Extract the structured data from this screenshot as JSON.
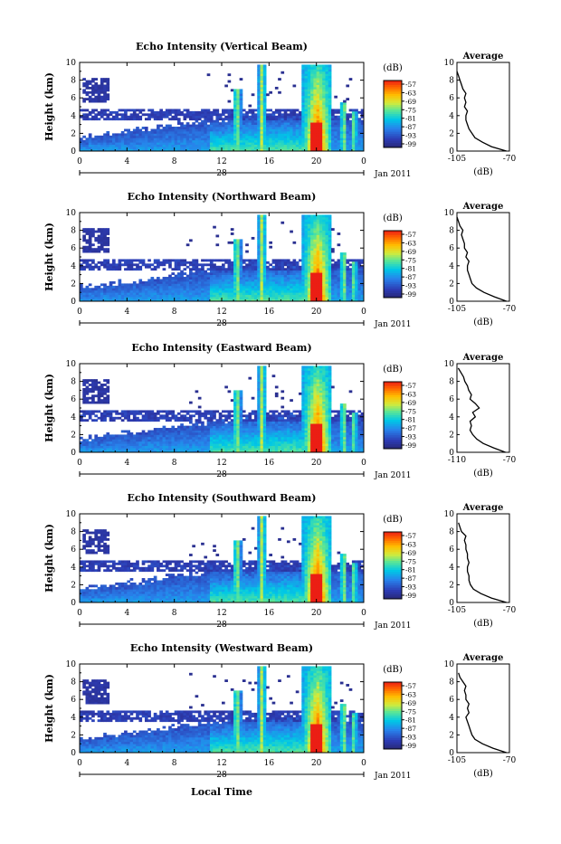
{
  "figure": {
    "x_axis_label": "Local Time",
    "day_label": "28",
    "month_label": "Jan 2011",
    "ylabel": "Height (km)",
    "colorbar_unit": "(dB)",
    "colorbar_ticks": [
      "-57",
      "-63",
      "-69",
      "-75",
      "-81",
      "-87",
      "-93",
      "-99"
    ],
    "time_ticks": [
      "0",
      "4",
      "8",
      "12",
      "16",
      "20",
      "0"
    ],
    "height_ticks": [
      "0",
      "2",
      "4",
      "6",
      "8",
      "10"
    ],
    "profile_title": "Average",
    "profile_xlabel": "(dB)"
  },
  "chart_data": [
    {
      "type": "heatmap",
      "title": "Echo Intensity (Vertical Beam)",
      "xlabel": "Local Time",
      "ylabel": "Height (km)",
      "xlim": [
        0,
        24
      ],
      "ylim": [
        0,
        10
      ],
      "colorbar": {
        "label": "(dB)",
        "range": [
          -99,
          -57
        ]
      },
      "profile": {
        "title": "Average",
        "xlabel": "(dB)",
        "xlim": [
          -105,
          -70
        ],
        "xticks": [
          "-105",
          "-70"
        ],
        "heights": [
          0,
          0.5,
          1,
          1.5,
          2,
          2.5,
          3,
          3.5,
          4,
          4.5,
          5,
          5.5,
          6,
          6.5,
          7,
          7.5,
          8,
          8.5,
          9
        ],
        "values": [
          -72,
          -82,
          -88,
          -93,
          -95,
          -97,
          -98,
          -99,
          -99,
          -98,
          -100,
          -99,
          -100,
          -99,
          -101,
          -102,
          -103,
          -104,
          -105
        ]
      }
    },
    {
      "type": "heatmap",
      "title": "Echo Intensity (Northward Beam)",
      "xlabel": "Local Time",
      "ylabel": "Height (km)",
      "xlim": [
        0,
        24
      ],
      "ylim": [
        0,
        10
      ],
      "colorbar": {
        "label": "(dB)",
        "range": [
          -99,
          -57
        ]
      },
      "profile": {
        "title": "Average",
        "xlabel": "(dB)",
        "xlim": [
          -105,
          -70
        ],
        "xticks": [
          "-105",
          "-70"
        ],
        "heights": [
          0,
          0.5,
          1,
          1.5,
          2,
          2.5,
          3,
          3.5,
          4,
          4.5,
          5,
          5.5,
          6,
          6.5,
          7,
          7.5,
          8,
          8.5,
          9,
          9.5
        ],
        "values": [
          -72,
          -80,
          -87,
          -92,
          -95,
          -96,
          -97,
          -98,
          -98,
          -97,
          -99,
          -98,
          -100,
          -100,
          -101,
          -102,
          -101,
          -103,
          -104,
          -105
        ]
      }
    },
    {
      "type": "heatmap",
      "title": "Echo Intensity (Eastward Beam)",
      "xlabel": "Local Time",
      "ylabel": "Height (km)",
      "xlim": [
        0,
        24
      ],
      "ylim": [
        0,
        10
      ],
      "colorbar": {
        "label": "(dB)",
        "range": [
          -99,
          -57
        ]
      },
      "profile": {
        "title": "Average",
        "xlabel": "(dB)",
        "xlim": [
          -110,
          -70
        ],
        "xticks": [
          "-110",
          "-70"
        ],
        "heights": [
          0,
          0.5,
          1,
          1.5,
          2,
          2.5,
          3,
          3.5,
          4,
          4.5,
          5,
          5.5,
          6,
          6.5,
          7,
          7.5,
          8,
          8.5,
          9,
          9.5
        ],
        "values": [
          -73,
          -82,
          -90,
          -95,
          -98,
          -100,
          -99,
          -100,
          -96,
          -98,
          -93,
          -96,
          -100,
          -99,
          -101,
          -102,
          -104,
          -105,
          -107,
          -109
        ]
      }
    },
    {
      "type": "heatmap",
      "title": "Echo Intensity (Southward Beam)",
      "xlabel": "Local Time",
      "ylabel": "Height (km)",
      "xlim": [
        0,
        24
      ],
      "ylim": [
        0,
        10
      ],
      "colorbar": {
        "label": "(dB)",
        "range": [
          -99,
          -57
        ]
      },
      "profile": {
        "title": "Average",
        "xlabel": "(dB)",
        "xlim": [
          -105,
          -70
        ],
        "xticks": [
          "-105",
          "-70"
        ],
        "heights": [
          0,
          0.5,
          1,
          1.5,
          2,
          2.5,
          3,
          3.5,
          4,
          4.5,
          5,
          5.5,
          6,
          6.5,
          7,
          7.5,
          8,
          8.5,
          9
        ],
        "values": [
          -72,
          -82,
          -89,
          -94,
          -96,
          -97,
          -97,
          -98,
          -98,
          -97,
          -98,
          -98,
          -99,
          -99,
          -100,
          -99,
          -102,
          -103,
          -104
        ]
      }
    },
    {
      "type": "heatmap",
      "title": "Echo Intensity (Westward Beam)",
      "xlabel": "Local Time",
      "ylabel": "Height (km)",
      "xlim": [
        0,
        24
      ],
      "ylim": [
        0,
        10
      ],
      "colorbar": {
        "label": "(dB)",
        "range": [
          -99,
          -57
        ]
      },
      "profile": {
        "title": "Average",
        "xlabel": "(dB)",
        "xlim": [
          -105,
          -70
        ],
        "xticks": [
          "-105",
          "-70"
        ],
        "heights": [
          0,
          0.5,
          1,
          1.5,
          2,
          2.5,
          3,
          3.5,
          4,
          4.5,
          5,
          5.5,
          6,
          6.5,
          7,
          7.5,
          8,
          8.5,
          9
        ],
        "values": [
          -72,
          -81,
          -88,
          -93,
          -95,
          -96,
          -97,
          -98,
          -99,
          -97,
          -98,
          -97,
          -99,
          -99,
          -100,
          -99,
          -101,
          -103,
          -104
        ]
      }
    }
  ]
}
